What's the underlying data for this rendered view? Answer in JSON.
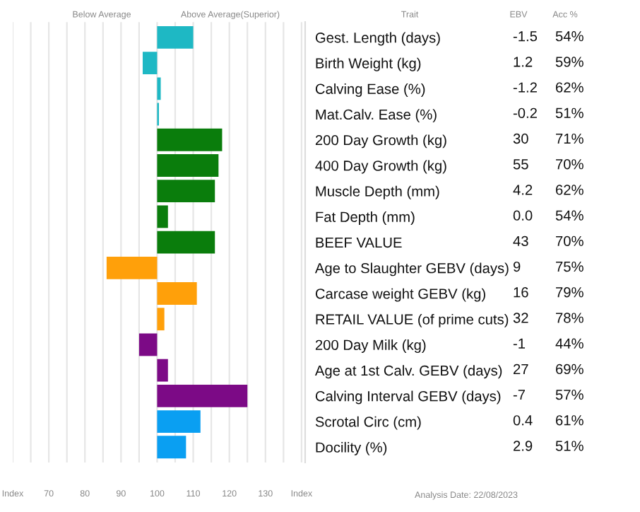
{
  "chart_data": {
    "type": "bar",
    "orientation": "horizontal",
    "categories": [
      "Gest. Length (days)",
      "Birth Weight (kg)",
      "Calving Ease (%)",
      "Mat.Calv. Ease (%)",
      "200 Day Growth (kg)",
      "400 Day Growth (kg)",
      "Muscle Depth (mm)",
      "Fat Depth (mm)",
      "BEEF VALUE",
      "Age to Slaughter GEBV (days)",
      "Carcase weight GEBV (kg)",
      "RETAIL VALUE (of prime cuts)",
      "200 Day Milk (kg)",
      "Age at 1st Calv. GEBV (days)",
      "Calving Interval GEBV (days)",
      "Scrotal Circ (cm)",
      "Docility (%)"
    ],
    "values": [
      10,
      -4,
      1,
      0.5,
      18,
      17,
      16,
      3,
      16,
      -14,
      11,
      2,
      -5,
      3,
      25,
      12,
      8
    ],
    "base": [
      100,
      100,
      100,
      100,
      100,
      100,
      100,
      100,
      100,
      100,
      100,
      100,
      100,
      100,
      100,
      100,
      100
    ],
    "colors": [
      "#1eb8c4",
      "#1eb8c4",
      "#1eb8c4",
      "#1eb8c4",
      "#0a7d0c",
      "#0a7d0c",
      "#0a7d0c",
      "#0a7d0c",
      "#0a7d0c",
      "#ffa00a",
      "#ffa00a",
      "#ffa00a",
      "#7c0a86",
      "#7c0a86",
      "#7c0a86",
      "#0a9ff2",
      "#0a9ff2"
    ],
    "xlim": [
      60,
      141
    ],
    "xticks": [
      {
        "value": 60,
        "label": "Index"
      },
      {
        "value": 65,
        "label": null
      },
      70,
      {
        "value": 75,
        "label": null
      },
      80,
      {
        "value": 85,
        "label": null
      },
      90,
      {
        "value": 95,
        "label": null
      },
      100,
      {
        "value": 105,
        "label": null
      },
      110,
      {
        "value": 115,
        "label": null
      },
      120,
      {
        "value": 125,
        "label": null
      },
      130,
      {
        "value": 135,
        "label": null
      },
      {
        "value": 140,
        "label": "Index"
      }
    ],
    "grid": "x",
    "annotations": [
      "Below Average",
      "Above Average(Superior)",
      "Trait",
      "EBV",
      "Acc %",
      "-1.5",
      "1.2",
      "-1.2",
      "-0.2",
      "30",
      "55",
      "4.2",
      "0.0",
      "43",
      "9",
      "16",
      "32",
      "-1",
      "27",
      "-7",
      "0.4",
      "2.9",
      "54%",
      "59%",
      "62%",
      "51%",
      "71%",
      "70%",
      "62%",
      "54%",
      "70%",
      "75%",
      "79%",
      "78%",
      "44%",
      "69%",
      "57%",
      "61%",
      "51%",
      "Analysis Date: 22/08/2023"
    ]
  }
}
